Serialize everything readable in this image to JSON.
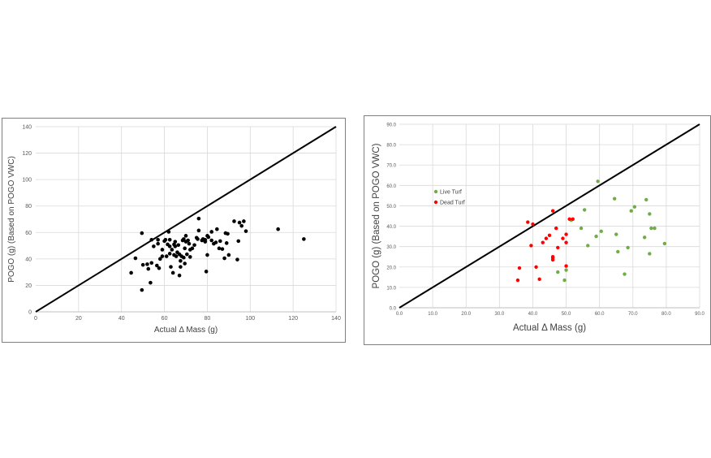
{
  "chart_data": [
    {
      "type": "scatter",
      "xlabel": "Actual Δ Mass (g)",
      "ylabel": "POGO (g)  (Based on  POGO  VWC)",
      "xlim": [
        0,
        140
      ],
      "ylim": [
        0,
        140
      ],
      "x_ticks": [
        "0",
        "20",
        "40",
        "60",
        "80",
        "100",
        "120",
        "140"
      ],
      "y_ticks": [
        "0",
        "20",
        "40",
        "60",
        "80",
        "100",
        "120",
        "140"
      ],
      "grid": true,
      "reference_line": {
        "from": [
          0,
          0
        ],
        "to": [
          140,
          140
        ]
      },
      "series": [
        {
          "color": "#000000",
          "points": [
            [
              44.5,
              29.5
            ],
            [
              46.5,
              40.5
            ],
            [
              49.5,
              16.5
            ],
            [
              49.5,
              59.5
            ],
            [
              50,
              35.5
            ],
            [
              52,
              36
            ],
            [
              52.5,
              32.5
            ],
            [
              53.5,
              22
            ],
            [
              54,
              37
            ],
            [
              54,
              54.5
            ],
            [
              55,
              49.5
            ],
            [
              56.5,
              35
            ],
            [
              57,
              51.5
            ],
            [
              57,
              54.5
            ],
            [
              57.5,
              33
            ],
            [
              58,
              40
            ],
            [
              59,
              42
            ],
            [
              59,
              47
            ],
            [
              60,
              53.5
            ],
            [
              60.5,
              54.5
            ],
            [
              61,
              42
            ],
            [
              61.5,
              51
            ],
            [
              62,
              60.5
            ],
            [
              62.5,
              49.5
            ],
            [
              62.5,
              44
            ],
            [
              62.5,
              54.5
            ],
            [
              63,
              34
            ],
            [
              63.5,
              47
            ],
            [
              64,
              29.5
            ],
            [
              64.5,
              43
            ],
            [
              64.5,
              51
            ],
            [
              65,
              53
            ],
            [
              65,
              49.5
            ],
            [
              65.5,
              42
            ],
            [
              66,
              45
            ],
            [
              66.5,
              50.5
            ],
            [
              67,
              43.5
            ],
            [
              67,
              27.5
            ],
            [
              67.5,
              34
            ],
            [
              67.5,
              38.5
            ],
            [
              68,
              42
            ],
            [
              68.5,
              54
            ],
            [
              69,
              41
            ],
            [
              69,
              55
            ],
            [
              69.5,
              48
            ],
            [
              69.5,
              36.5
            ],
            [
              70,
              53
            ],
            [
              70,
              57.5
            ],
            [
              70.5,
              43.5
            ],
            [
              71,
              54
            ],
            [
              71.5,
              51.5
            ],
            [
              72,
              47
            ],
            [
              72,
              41.5
            ],
            [
              73,
              48
            ],
            [
              74,
              50.5
            ],
            [
              75,
              56
            ],
            [
              75.5,
              55
            ],
            [
              76,
              70.5
            ],
            [
              76,
              61.5
            ],
            [
              77.5,
              54
            ],
            [
              78,
              55
            ],
            [
              79,
              53
            ],
            [
              79,
              54.5
            ],
            [
              79.5,
              30.5
            ],
            [
              80,
              43
            ],
            [
              80,
              57.5
            ],
            [
              80.5,
              56.5
            ],
            [
              82,
              54
            ],
            [
              82,
              60.5
            ],
            [
              83,
              51.5
            ],
            [
              84,
              52.5
            ],
            [
              84.5,
              62.5
            ],
            [
              85.5,
              48
            ],
            [
              86,
              53.5
            ],
            [
              87,
              47.5
            ],
            [
              88,
              40.5
            ],
            [
              88.5,
              59.5
            ],
            [
              89,
              52
            ],
            [
              89.5,
              59
            ],
            [
              90,
              43
            ],
            [
              92.5,
              68.5
            ],
            [
              94,
              39.5
            ],
            [
              94.5,
              53.5
            ],
            [
              95,
              67.5
            ],
            [
              96,
              65
            ],
            [
              97,
              68.5
            ],
            [
              98,
              61
            ],
            [
              113,
              62.5
            ],
            [
              125,
              55
            ]
          ]
        }
      ]
    },
    {
      "type": "scatter",
      "xlabel": "Actual Δ Mass (g)",
      "ylabel": "POGO (g) (Based on  POGO VWC)",
      "xlim": [
        0,
        90
      ],
      "ylim": [
        0,
        90
      ],
      "x_ticks": [
        "0.0",
        "10.0",
        "20.0",
        "30.0",
        "40.0",
        "50.0",
        "60.0",
        "70.0",
        "80.0",
        "90.0"
      ],
      "y_ticks": [
        "0.0",
        "10.0",
        "20.0",
        "30.0",
        "40.0",
        "50.0",
        "60.0",
        "70.0",
        "80.0",
        "90.0"
      ],
      "grid": true,
      "legend_position": "left",
      "reference_line": {
        "from": [
          0,
          0
        ],
        "to": [
          90,
          90
        ]
      },
      "series": [
        {
          "name": "Live Turf",
          "color": "#70ad47",
          "points": [
            [
              47.5,
              17.5
            ],
            [
              49.5,
              13.5
            ],
            [
              50,
              18.5
            ],
            [
              51.5,
              43
            ],
            [
              54.5,
              39
            ],
            [
              55.5,
              48
            ],
            [
              56.5,
              30.5
            ],
            [
              59,
              35
            ],
            [
              59.5,
              62
            ],
            [
              60.5,
              37.5
            ],
            [
              64.5,
              53.5
            ],
            [
              65,
              36
            ],
            [
              65.5,
              27.5
            ],
            [
              67.5,
              16.5
            ],
            [
              68.5,
              29.5
            ],
            [
              69.5,
              47.5
            ],
            [
              70.5,
              49.5
            ],
            [
              73.5,
              34.5
            ],
            [
              74,
              53
            ],
            [
              75,
              46
            ],
            [
              75,
              26.5
            ],
            [
              75.5,
              39
            ],
            [
              76.5,
              39
            ],
            [
              79.5,
              31.5
            ]
          ]
        },
        {
          "name": "Dead Turf",
          "color": "#ff0000",
          "points": [
            [
              35.5,
              13.5
            ],
            [
              36,
              19.5
            ],
            [
              38.5,
              42
            ],
            [
              39.5,
              30.5
            ],
            [
              40,
              41
            ],
            [
              41,
              20
            ],
            [
              42,
              14
            ],
            [
              43,
              32
            ],
            [
              44,
              34
            ],
            [
              45,
              35.5
            ],
            [
              46,
              47.5
            ],
            [
              46,
              25
            ],
            [
              46,
              24.5
            ],
            [
              46,
              23.5
            ],
            [
              47,
              39
            ],
            [
              47.5,
              29.5
            ],
            [
              49,
              34
            ],
            [
              50,
              32
            ],
            [
              50,
              36
            ],
            [
              50,
              20.5
            ],
            [
              51,
              43.5
            ],
            [
              52,
              43.5
            ]
          ]
        }
      ]
    }
  ]
}
